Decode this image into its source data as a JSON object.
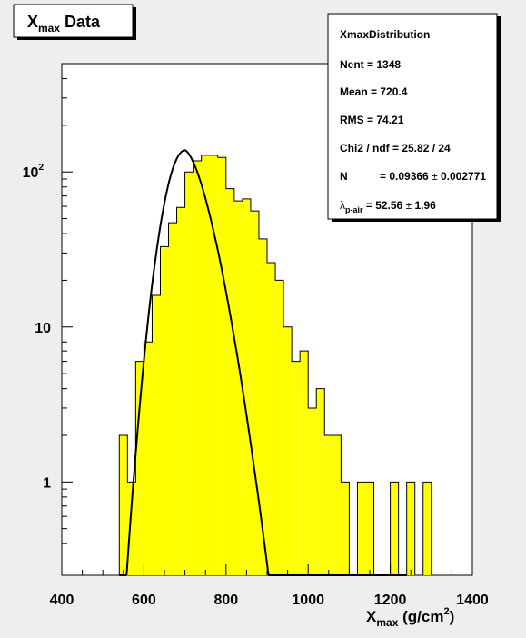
{
  "title": {
    "main": "X",
    "sub": "max",
    "rest": " Data"
  },
  "chart_data": {
    "type": "bar",
    "scale_y": "log",
    "xlim": [
      400,
      1400
    ],
    "ylim": [
      0.25,
      500
    ],
    "bin_width": 20,
    "bin_edges_start": 540,
    "values": [
      2,
      1,
      6,
      8,
      16,
      33,
      47,
      59,
      100,
      118,
      128,
      128,
      124,
      78,
      65,
      67,
      56,
      37,
      26,
      20,
      10,
      6,
      7,
      3,
      4,
      2,
      2,
      1,
      0,
      1,
      1,
      0,
      0,
      1,
      0,
      1,
      0,
      1
    ],
    "fit": {
      "peak_x": 700,
      "peak_y": 138,
      "sigma_left": 40,
      "lambda": 52.56
    },
    "x_ticks": [
      "400",
      "600",
      "800",
      "1000",
      "1200",
      "1400"
    ],
    "y_ticks": [
      "1",
      "10",
      "10"
    ],
    "y_tick_sup": "2",
    "xlabel": {
      "main": "X",
      "sub": "max",
      "unit_pre": " (g/cm",
      "unit_sup": "2",
      "unit_post": ")"
    },
    "bar_color": "#ffff00",
    "fit_color": "#000000"
  },
  "stats": {
    "name": "XmaxDistribution",
    "entries": "Nent = 1348",
    "mean": "Mean  =  720.4",
    "rms": "RMS  =  74.21",
    "chi2": "Chi2 / ndf = 25.82 / 24",
    "n_label": "N",
    "n_value": "= 0.09366 ",
    "n_pm": "±",
    "n_err": " 0.002771",
    "lambda_symbol": "λ",
    "lambda_sub": "p-air",
    "lambda_value": " = 52.56 ",
    "lambda_pm": "±",
    "lambda_err": "  1.96"
  }
}
